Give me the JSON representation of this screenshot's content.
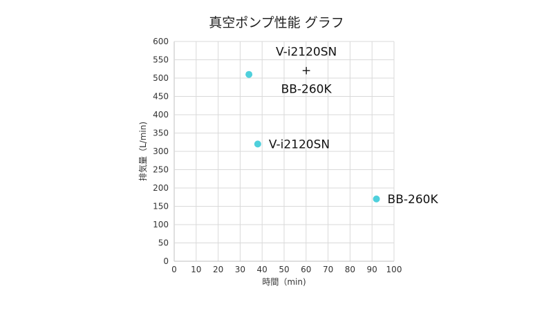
{
  "chart_data": {
    "type": "scatter",
    "title": "真空ポンプ性能 グラフ",
    "xlabel": "時間（min)",
    "ylabel": "排気量（L/min)",
    "xlim": [
      0,
      100
    ],
    "ylim": [
      0,
      600
    ],
    "xticks": [
      "0",
      "10",
      "20",
      "30",
      "40",
      "50",
      "60",
      "70",
      "80",
      "90",
      "100"
    ],
    "yticks": [
      "0",
      "50",
      "100",
      "150",
      "200",
      "250",
      "300",
      "350",
      "400",
      "450",
      "500",
      "550",
      "600"
    ],
    "grid": true,
    "point_color": "#4fd0dc",
    "points": [
      {
        "x": 34,
        "y": 510,
        "label_lines": [
          "V-i2120SN",
          "+",
          "BB-260K"
        ]
      },
      {
        "x": 38,
        "y": 320,
        "label_lines": [
          "V-i2120SN"
        ]
      },
      {
        "x": 92,
        "y": 170,
        "label_lines": [
          "BB-260K"
        ]
      }
    ]
  }
}
